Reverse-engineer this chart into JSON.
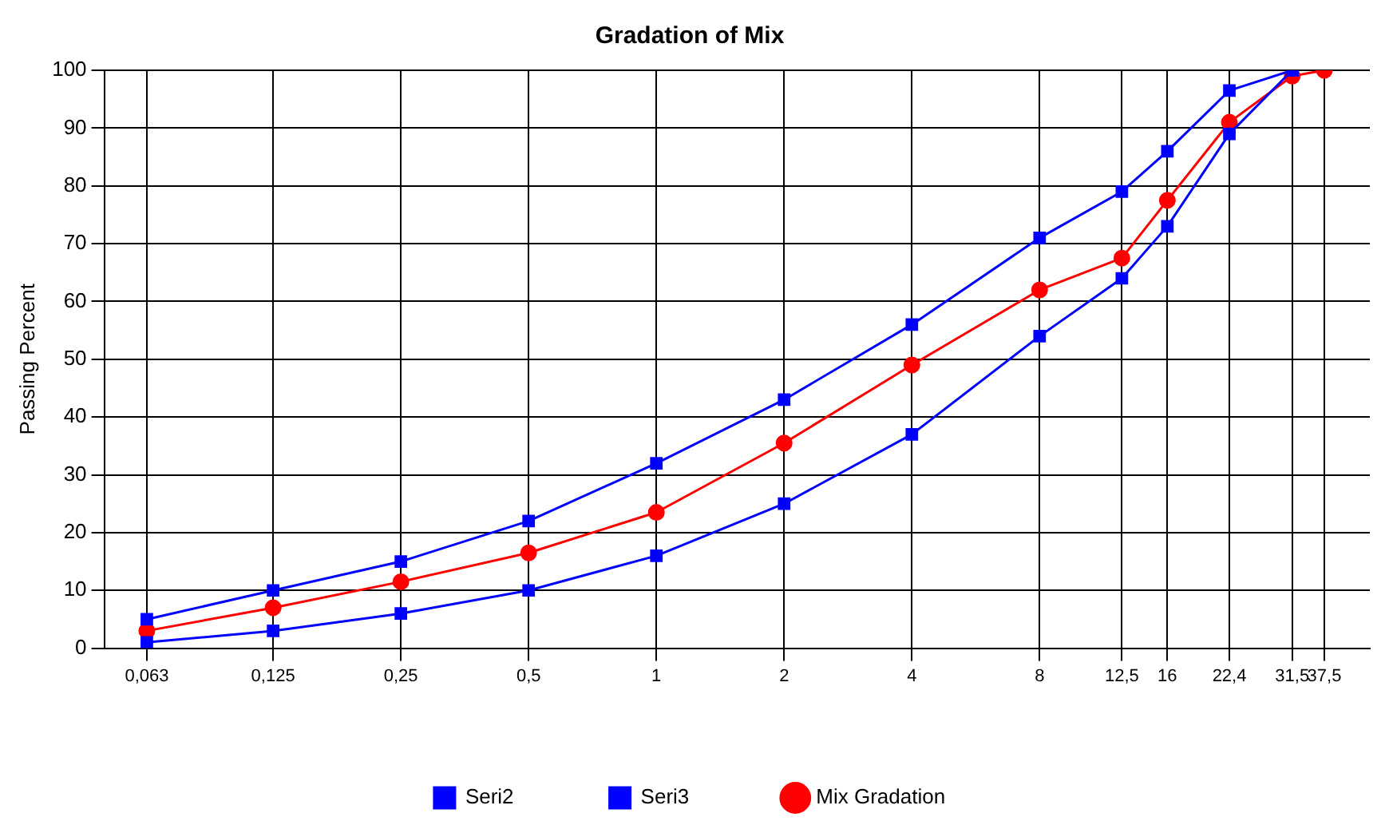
{
  "chart_data": {
    "type": "line",
    "title": "Gradation of Mix",
    "ylabel": "Passing Percent",
    "log": "x",
    "grid": true,
    "legend": "bottom",
    "xlim": [
      0.05,
      48
    ],
    "ylim": [
      0,
      100
    ],
    "xticks": [
      {
        "value": 0.063,
        "label": "0,063"
      },
      {
        "value": 0.125,
        "label": "0,125"
      },
      {
        "value": 0.25,
        "label": "0,25"
      },
      {
        "value": 0.5,
        "label": "0,5"
      },
      1,
      2,
      4,
      8,
      {
        "value": 12.5,
        "label": "12,5"
      },
      16,
      {
        "value": 22.4,
        "label": "22,4"
      },
      {
        "value": 31.5,
        "label": "31,5"
      },
      {
        "value": 37.5,
        "label": "37,5"
      }
    ],
    "yticks": [
      0,
      10,
      20,
      30,
      40,
      50,
      60,
      70,
      80,
      90,
      100
    ],
    "line_style": "solid",
    "series": [
      {
        "name": "Seri2",
        "color": "#0000ff",
        "marker": "square",
        "x": [
          0.063,
          0.125,
          0.25,
          0.5,
          1,
          2,
          4,
          8,
          12.5,
          16,
          22.4,
          31.5
        ],
        "values": [
          5,
          10,
          15,
          22,
          32,
          43,
          56,
          71,
          79,
          86,
          96.5,
          100
        ]
      },
      {
        "name": "Seri3",
        "color": "#0000ff",
        "marker": "square",
        "x": [
          0.063,
          0.125,
          0.25,
          0.5,
          1,
          2,
          4,
          8,
          12.5,
          16,
          22.4,
          31.5
        ],
        "values": [
          1,
          3,
          6,
          10,
          16,
          25,
          37,
          54,
          64,
          73,
          89,
          100
        ]
      },
      {
        "name": "Mix Gradation",
        "color": "#ff0000",
        "marker": "circle",
        "x": [
          0.063,
          0.125,
          0.25,
          0.5,
          1,
          2,
          4,
          8,
          12.5,
          16,
          22.4,
          31.5,
          37.5
        ],
        "values": [
          3,
          7,
          11.5,
          16.5,
          23.5,
          35.5,
          49,
          62,
          67.5,
          77.5,
          91,
          99,
          100
        ]
      }
    ]
  }
}
